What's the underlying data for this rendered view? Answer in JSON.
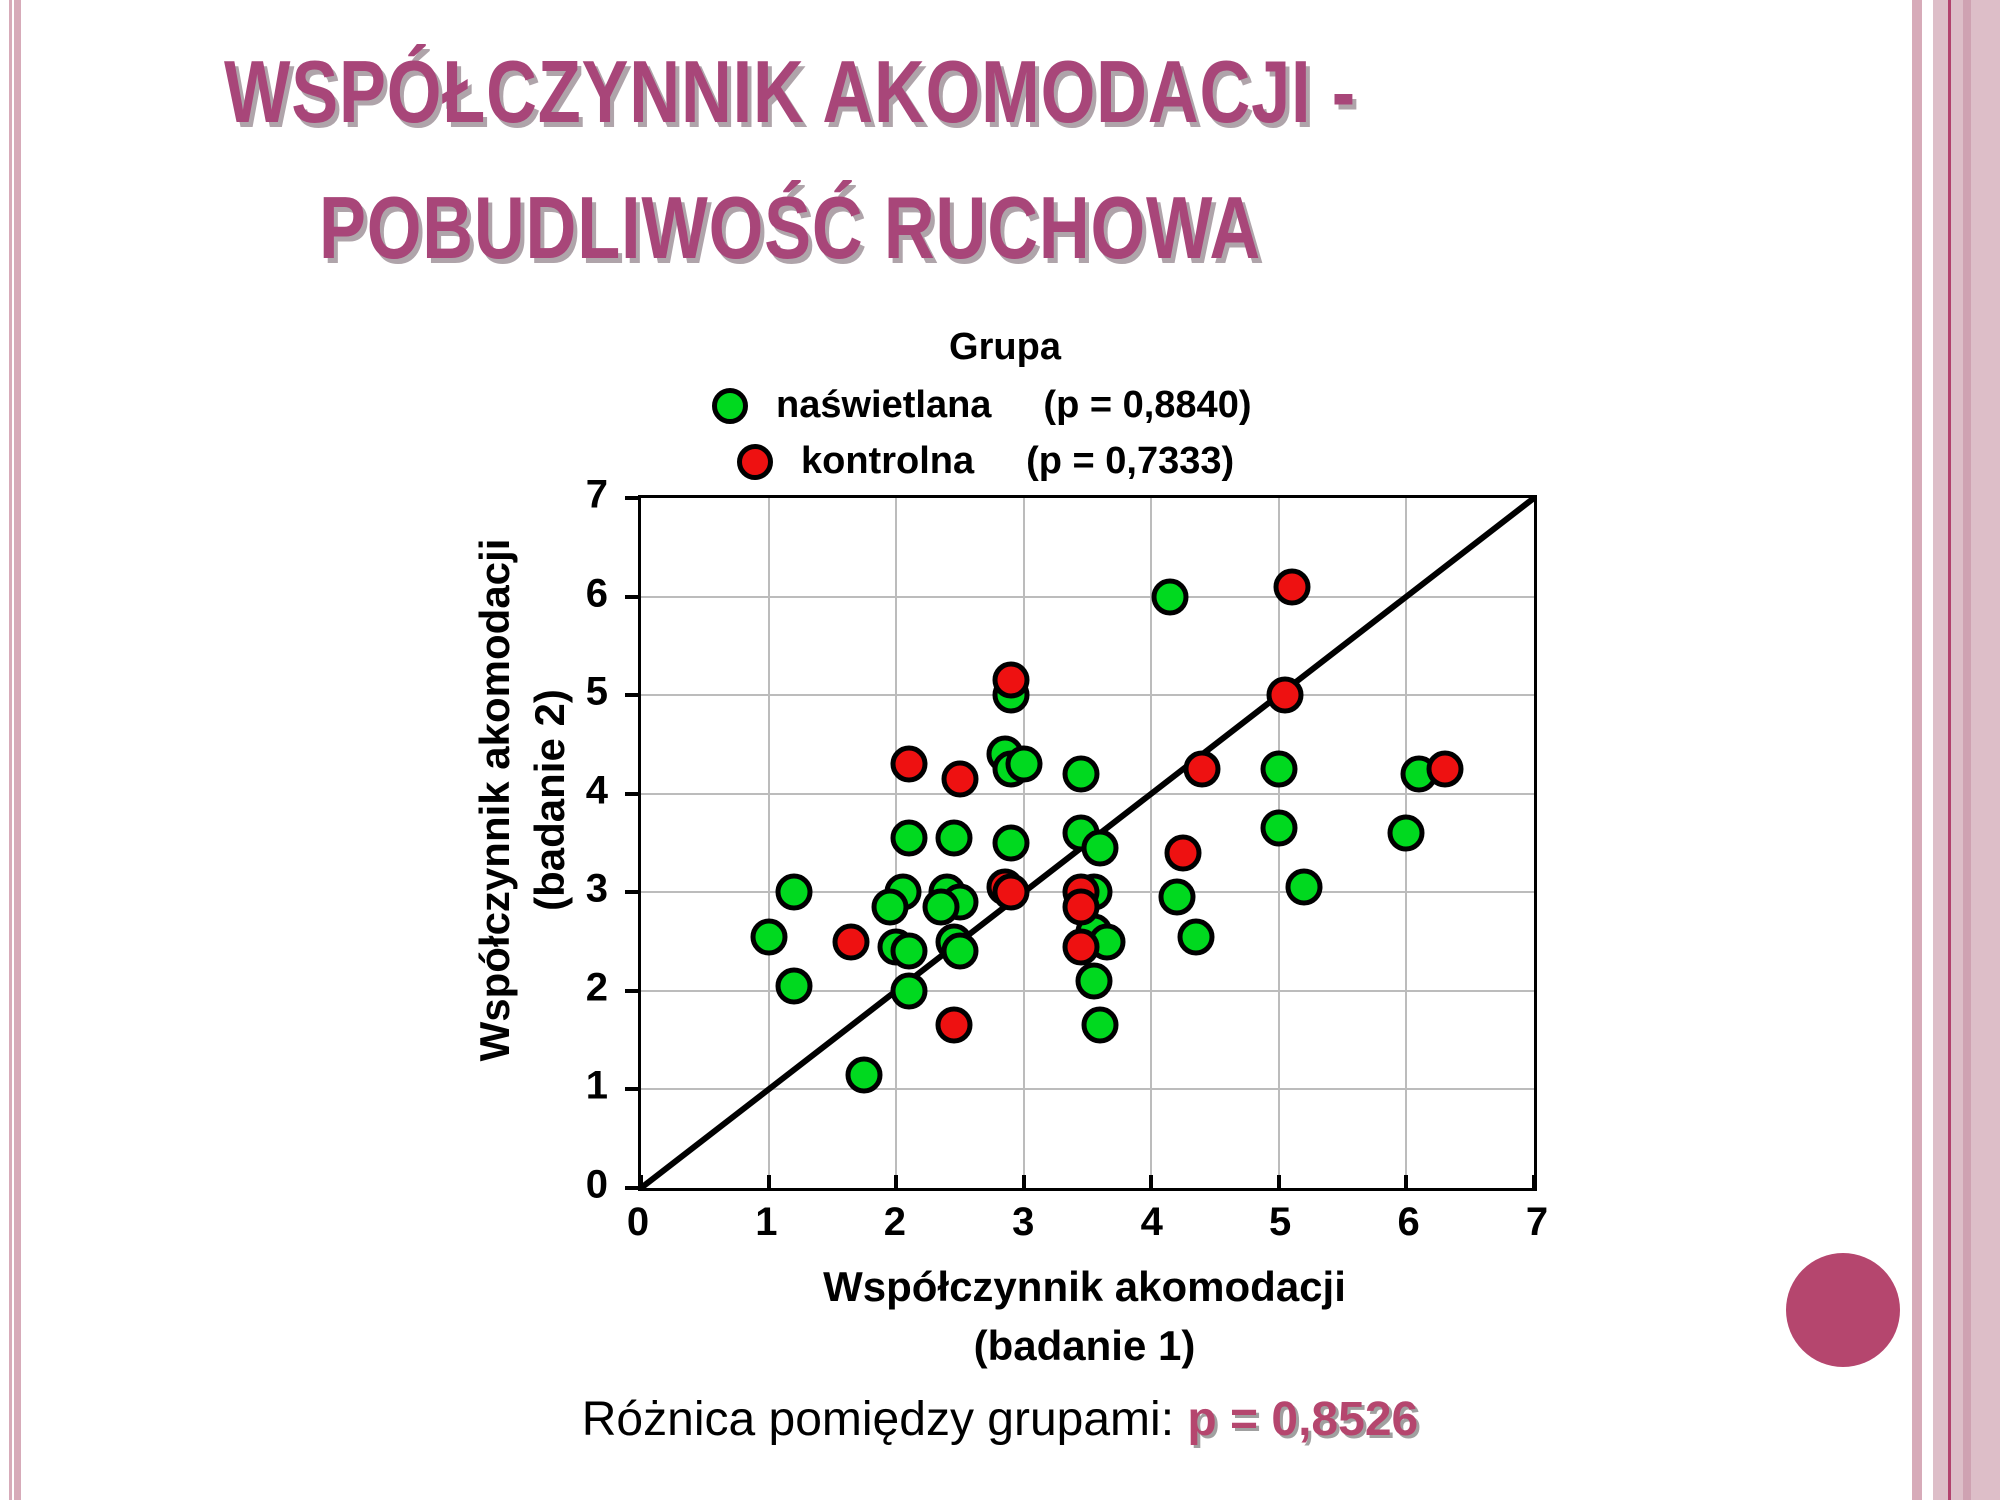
{
  "slide": {
    "title_line1": "WSPÓŁCZYNNIK AKOMODACJI -",
    "title_line2": "POBUDLIWOŚĆ RUCHOWA",
    "footer_prefix": "Różnica pomiędzy grupami: ",
    "footer_value": "p = 0,8526"
  },
  "colors": {
    "title": "#a84679",
    "footer_value": "#b5466e",
    "deco_circle": "#b5466e",
    "border_pink_light": "#d7abb9",
    "border_pink_band": "#ddbec8",
    "border_magenta_line": "#b2426d",
    "green_marker": "#00d91f",
    "red_marker": "#ee1111",
    "gridline": "#bcbcbc"
  },
  "chart_data": {
    "type": "scatter",
    "title": "Grupa",
    "xlabel_line1": "Współczynnik akomodacji",
    "xlabel_line2": "(badanie 1)",
    "ylabel_line1": "Współczynnik akomodacji",
    "ylabel_line2": "(badanie 2)",
    "xlim": [
      0,
      7
    ],
    "ylim": [
      0,
      7
    ],
    "xticks": [
      0,
      1,
      2,
      3,
      4,
      5,
      6,
      7
    ],
    "yticks": [
      0,
      1,
      2,
      3,
      4,
      5,
      6,
      7
    ],
    "grid": true,
    "legend_position": "top",
    "reference_line": {
      "from": [
        0,
        0
      ],
      "to": [
        7,
        7
      ]
    },
    "legend": [
      {
        "label": "naświetlana",
        "p_label": "(p = 0,8840)",
        "color": "#00d91f"
      },
      {
        "label": "kontrolna",
        "p_label": "(p = 0,7333)",
        "color": "#ee1111"
      }
    ],
    "series": [
      {
        "name": "naswietlana",
        "color": "#00d91f",
        "points": [
          [
            4.15,
            6.0
          ],
          [
            2.9,
            5.0
          ],
          [
            2.85,
            4.4
          ],
          [
            2.9,
            4.25
          ],
          [
            3.0,
            4.3
          ],
          [
            3.45,
            4.2
          ],
          [
            5.0,
            4.25
          ],
          [
            6.1,
            4.2
          ],
          [
            2.1,
            3.55
          ],
          [
            2.45,
            3.55
          ],
          [
            2.9,
            3.5
          ],
          [
            3.45,
            3.6
          ],
          [
            3.6,
            3.45
          ],
          [
            5.0,
            3.65
          ],
          [
            6.0,
            3.6
          ],
          [
            1.2,
            3.0
          ],
          [
            2.05,
            3.0
          ],
          [
            1.95,
            2.85
          ],
          [
            2.4,
            3.0
          ],
          [
            2.5,
            2.9
          ],
          [
            2.35,
            2.85
          ],
          [
            3.55,
            3.0
          ],
          [
            4.2,
            2.95
          ],
          [
            5.2,
            3.05
          ],
          [
            1.0,
            2.55
          ],
          [
            2.0,
            2.45
          ],
          [
            2.1,
            2.4
          ],
          [
            2.45,
            2.5
          ],
          [
            2.5,
            2.4
          ],
          [
            3.55,
            2.6
          ],
          [
            3.65,
            2.5
          ],
          [
            4.35,
            2.55
          ],
          [
            1.2,
            2.05
          ],
          [
            2.1,
            2.0
          ],
          [
            3.55,
            2.1
          ],
          [
            3.6,
            1.65
          ],
          [
            1.75,
            1.15
          ]
        ]
      },
      {
        "name": "kontrolna",
        "color": "#ee1111",
        "points": [
          [
            5.1,
            6.1
          ],
          [
            2.9,
            5.15
          ],
          [
            5.05,
            5.0
          ],
          [
            2.1,
            4.3
          ],
          [
            2.5,
            4.15
          ],
          [
            4.4,
            4.25
          ],
          [
            6.3,
            4.25
          ],
          [
            4.25,
            3.4
          ],
          [
            2.85,
            3.05
          ],
          [
            2.9,
            3.0
          ],
          [
            3.45,
            3.0
          ],
          [
            3.45,
            2.85
          ],
          [
            3.45,
            2.45
          ],
          [
            1.65,
            2.5
          ],
          [
            2.45,
            1.65
          ]
        ]
      }
    ]
  }
}
